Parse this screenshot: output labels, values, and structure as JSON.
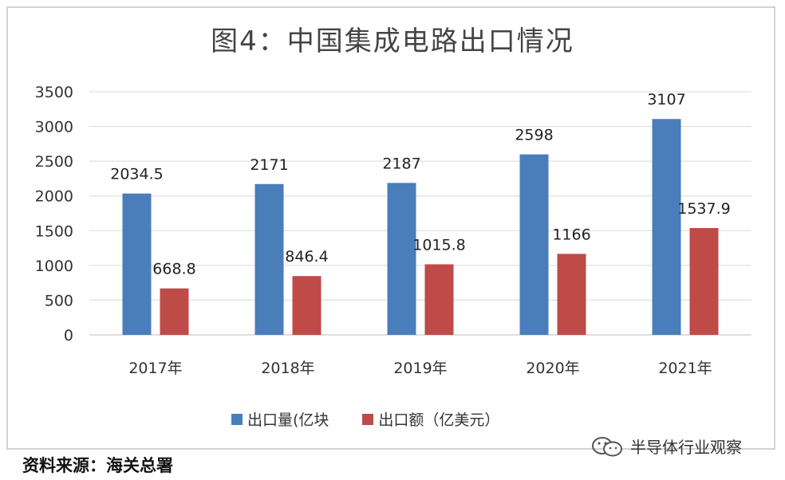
{
  "chart_data": {
    "type": "bar",
    "title": "图4：中国集成电路出口情况",
    "categories": [
      "2017年",
      "2018年",
      "2019年",
      "2020年",
      "2021年"
    ],
    "series": [
      {
        "name": "出口量(亿块",
        "color": "#4a7ebb",
        "values": [
          2034.5,
          2171,
          2187,
          2598,
          3107
        ],
        "labels": [
          "2034.5",
          "2171",
          "2187",
          "2598",
          "3107"
        ]
      },
      {
        "name": "出口额（亿美元）",
        "color": "#be4b48",
        "values": [
          668.8,
          846.4,
          1015.8,
          1166,
          1537.9
        ],
        "labels": [
          "668.8",
          "846.4",
          "1015.8",
          "1166",
          "1537.9"
        ]
      }
    ],
    "ylim": [
      0,
      3500
    ],
    "yticks": [
      0,
      500,
      1000,
      1500,
      2000,
      2500,
      3000,
      3500
    ],
    "grid": true,
    "legend_position": "bottom",
    "xlabel": "",
    "ylabel": ""
  },
  "source": "资料来源：海关总署",
  "watermark": "半导体行业观察"
}
